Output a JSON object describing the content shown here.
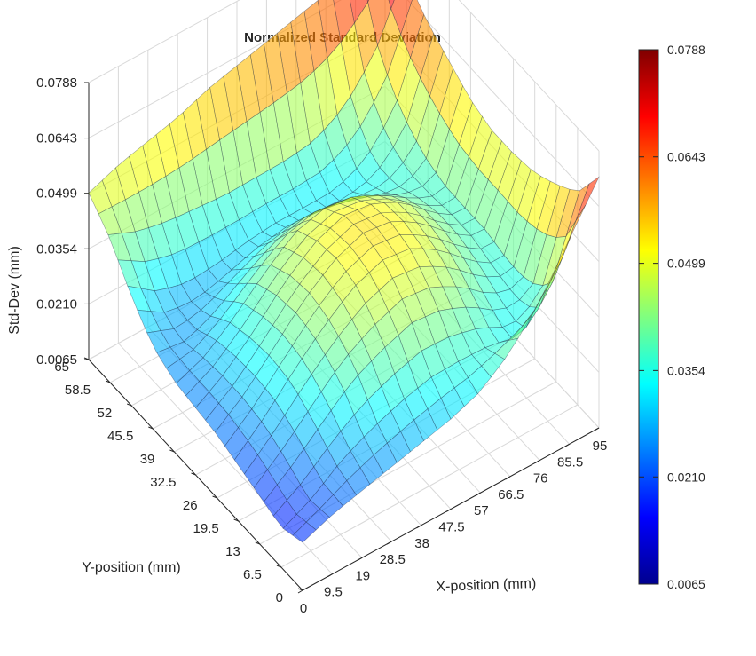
{
  "chart_data": {
    "type": "surface",
    "title": "Normalized Standard Deviation",
    "xlabel": "X-position (mm)",
    "ylabel": "Y-position (mm)",
    "zlabel": "Std-Dev (mm)",
    "xlim": [
      0,
      95
    ],
    "ylim": [
      0,
      65
    ],
    "zlim": [
      0.0065,
      0.0788
    ],
    "xticks": [
      "0",
      "9.5",
      "19",
      "28.5",
      "38",
      "47.5",
      "57",
      "66.5",
      "76",
      "85.5",
      "95"
    ],
    "yticks": [
      "0",
      "6.5",
      "13",
      "19.5",
      "26",
      "32.5",
      "39",
      "45.5",
      "52",
      "58.5",
      "65"
    ],
    "zticks": [
      "0.0065",
      "0.0210",
      "0.0354",
      "0.0499",
      "0.0643",
      "0.0788"
    ],
    "colorbar": {
      "colormap": "jet",
      "ticks": [
        "0.0065",
        "0.0210",
        "0.0354",
        "0.0499",
        "0.0643",
        "0.0788"
      ]
    },
    "grid": true,
    "surface_alpha": 0.6,
    "z_samples_x": [
      0,
      9.5,
      19,
      28.5,
      38,
      47.5,
      57,
      66.5,
      76,
      85.5,
      95
    ],
    "z_samples_y": [
      0,
      6.5,
      13,
      19.5,
      26,
      32.5,
      39,
      45.5,
      52,
      58.5,
      65
    ],
    "z_samples": [
      [
        0.019,
        0.022,
        0.024,
        0.026,
        0.028,
        0.03,
        0.033,
        0.039,
        0.048,
        0.06,
        0.072
      ],
      [
        0.017,
        0.021,
        0.027,
        0.031,
        0.034,
        0.036,
        0.036,
        0.035,
        0.032,
        0.039,
        0.062
      ],
      [
        0.019,
        0.025,
        0.032,
        0.039,
        0.043,
        0.046,
        0.045,
        0.041,
        0.035,
        0.034,
        0.058
      ],
      [
        0.021,
        0.028,
        0.036,
        0.043,
        0.049,
        0.052,
        0.051,
        0.046,
        0.039,
        0.034,
        0.055
      ],
      [
        0.023,
        0.029,
        0.037,
        0.045,
        0.051,
        0.054,
        0.053,
        0.048,
        0.041,
        0.036,
        0.054
      ],
      [
        0.024,
        0.029,
        0.036,
        0.044,
        0.05,
        0.053,
        0.052,
        0.048,
        0.041,
        0.036,
        0.054
      ],
      [
        0.025,
        0.028,
        0.034,
        0.041,
        0.047,
        0.049,
        0.048,
        0.044,
        0.039,
        0.036,
        0.056
      ],
      [
        0.028,
        0.026,
        0.029,
        0.034,
        0.038,
        0.04,
        0.039,
        0.037,
        0.035,
        0.038,
        0.06
      ],
      [
        0.035,
        0.029,
        0.027,
        0.028,
        0.03,
        0.031,
        0.031,
        0.031,
        0.034,
        0.043,
        0.064
      ],
      [
        0.044,
        0.04,
        0.038,
        0.037,
        0.036,
        0.036,
        0.036,
        0.037,
        0.042,
        0.052,
        0.07
      ],
      [
        0.05,
        0.053,
        0.055,
        0.057,
        0.06,
        0.062,
        0.064,
        0.066,
        0.068,
        0.072,
        0.0788
      ]
    ]
  }
}
